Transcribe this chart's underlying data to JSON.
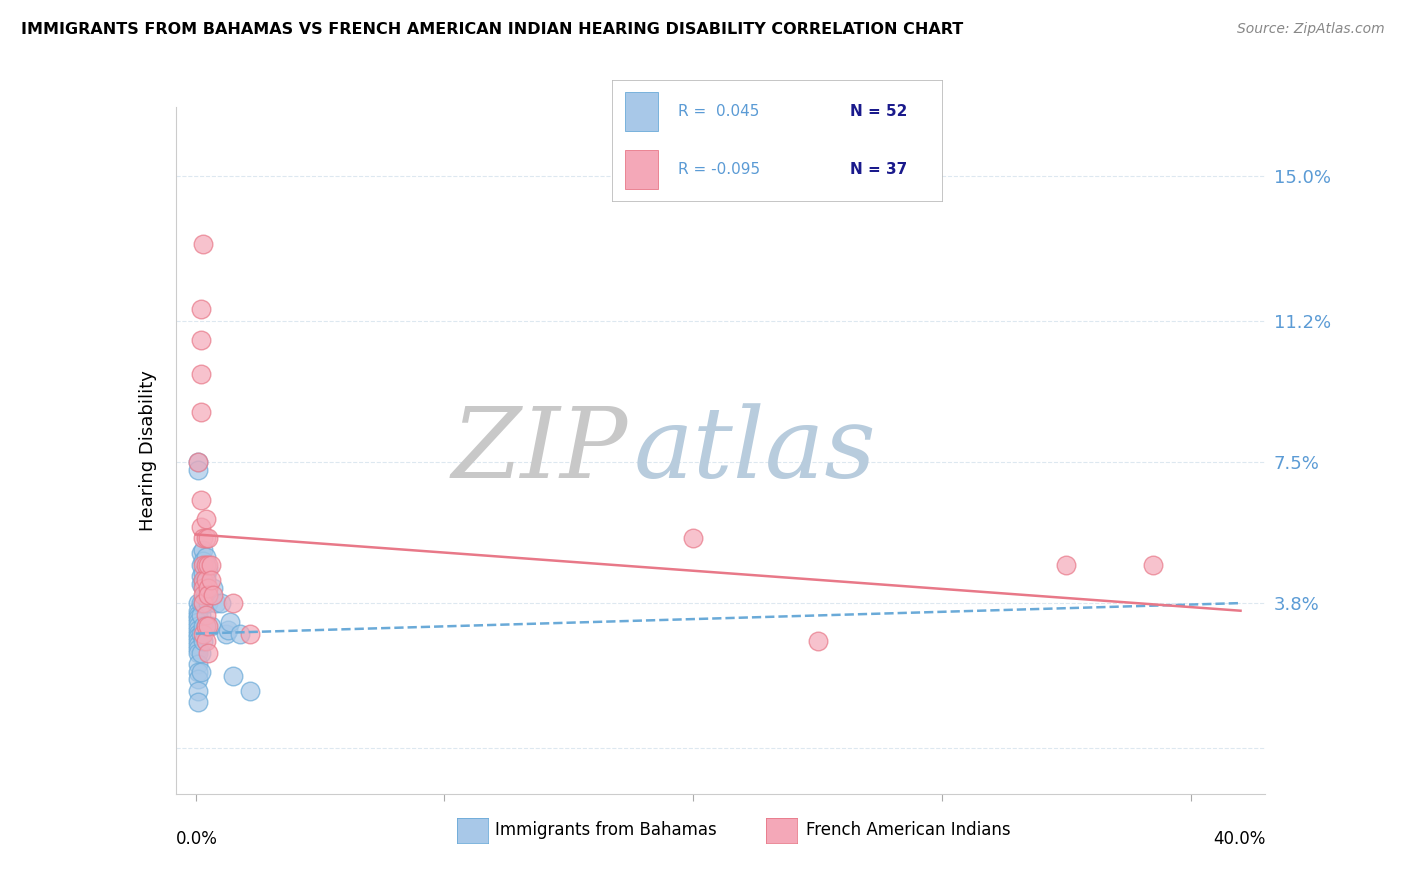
{
  "title": "IMMIGRANTS FROM BAHAMAS VS FRENCH AMERICAN INDIAN HEARING DISABILITY CORRELATION CHART",
  "source": "Source: ZipAtlas.com",
  "ylabel": "Hearing Disability",
  "yticks": [
    0.0,
    0.038,
    0.075,
    0.112,
    0.15
  ],
  "ytick_labels": [
    "",
    "3.8%",
    "7.5%",
    "11.2%",
    "15.0%"
  ],
  "xticks": [
    0.0,
    0.1,
    0.2,
    0.3,
    0.4
  ],
  "xlim": [
    -0.008,
    0.43
  ],
  "ylim": [
    -0.012,
    0.168
  ],
  "color_blue": "#a8c8e8",
  "color_pink": "#f4a8b8",
  "color_blue_dark": "#6aaad8",
  "color_pink_dark": "#e87888",
  "color_blue_text": "#5b9bd5",
  "watermark_zip_color": "#c8c8c8",
  "watermark_atlas_color": "#b8ccdd",
  "grid_color": "#dde8f0",
  "right_label_color": "#5b9bd5",
  "blue_scatter": [
    [
      0.001,
      0.075
    ],
    [
      0.001,
      0.073
    ],
    [
      0.001,
      0.038
    ],
    [
      0.001,
      0.036
    ],
    [
      0.001,
      0.035
    ],
    [
      0.001,
      0.034
    ],
    [
      0.001,
      0.033
    ],
    [
      0.001,
      0.032
    ],
    [
      0.001,
      0.031
    ],
    [
      0.001,
      0.03
    ],
    [
      0.001,
      0.029
    ],
    [
      0.001,
      0.028
    ],
    [
      0.001,
      0.027
    ],
    [
      0.001,
      0.026
    ],
    [
      0.001,
      0.025
    ],
    [
      0.001,
      0.022
    ],
    [
      0.001,
      0.02
    ],
    [
      0.001,
      0.018
    ],
    [
      0.001,
      0.015
    ],
    [
      0.001,
      0.012
    ],
    [
      0.002,
      0.051
    ],
    [
      0.002,
      0.048
    ],
    [
      0.002,
      0.045
    ],
    [
      0.002,
      0.043
    ],
    [
      0.002,
      0.038
    ],
    [
      0.002,
      0.035
    ],
    [
      0.002,
      0.03
    ],
    [
      0.002,
      0.025
    ],
    [
      0.002,
      0.02
    ],
    [
      0.003,
      0.052
    ],
    [
      0.003,
      0.049
    ],
    [
      0.003,
      0.046
    ],
    [
      0.003,
      0.043
    ],
    [
      0.003,
      0.038
    ],
    [
      0.003,
      0.032
    ],
    [
      0.003,
      0.028
    ],
    [
      0.004,
      0.05
    ],
    [
      0.004,
      0.045
    ],
    [
      0.004,
      0.04
    ],
    [
      0.004,
      0.032
    ],
    [
      0.005,
      0.047
    ],
    [
      0.005,
      0.038
    ],
    [
      0.006,
      0.032
    ],
    [
      0.007,
      0.042
    ],
    [
      0.008,
      0.038
    ],
    [
      0.01,
      0.038
    ],
    [
      0.012,
      0.03
    ],
    [
      0.013,
      0.031
    ],
    [
      0.014,
      0.033
    ],
    [
      0.015,
      0.019
    ],
    [
      0.018,
      0.03
    ],
    [
      0.022,
      0.015
    ]
  ],
  "pink_scatter": [
    [
      0.001,
      0.075
    ],
    [
      0.002,
      0.115
    ],
    [
      0.002,
      0.107
    ],
    [
      0.002,
      0.098
    ],
    [
      0.002,
      0.088
    ],
    [
      0.002,
      0.065
    ],
    [
      0.002,
      0.058
    ],
    [
      0.003,
      0.132
    ],
    [
      0.003,
      0.055
    ],
    [
      0.003,
      0.048
    ],
    [
      0.003,
      0.044
    ],
    [
      0.003,
      0.042
    ],
    [
      0.003,
      0.04
    ],
    [
      0.003,
      0.038
    ],
    [
      0.003,
      0.03
    ],
    [
      0.004,
      0.06
    ],
    [
      0.004,
      0.055
    ],
    [
      0.004,
      0.048
    ],
    [
      0.004,
      0.044
    ],
    [
      0.004,
      0.035
    ],
    [
      0.004,
      0.032
    ],
    [
      0.004,
      0.028
    ],
    [
      0.005,
      0.055
    ],
    [
      0.005,
      0.048
    ],
    [
      0.005,
      0.042
    ],
    [
      0.005,
      0.04
    ],
    [
      0.005,
      0.032
    ],
    [
      0.005,
      0.025
    ],
    [
      0.006,
      0.048
    ],
    [
      0.006,
      0.044
    ],
    [
      0.007,
      0.04
    ],
    [
      0.015,
      0.038
    ],
    [
      0.022,
      0.03
    ],
    [
      0.2,
      0.055
    ],
    [
      0.25,
      0.028
    ],
    [
      0.35,
      0.048
    ],
    [
      0.385,
      0.048
    ]
  ],
  "trendline1_x": [
    0.0,
    0.42
  ],
  "trendline1_y": [
    0.03,
    0.038
  ],
  "trendline2_x": [
    0.0,
    0.42
  ],
  "trendline2_y": [
    0.056,
    0.036
  ]
}
